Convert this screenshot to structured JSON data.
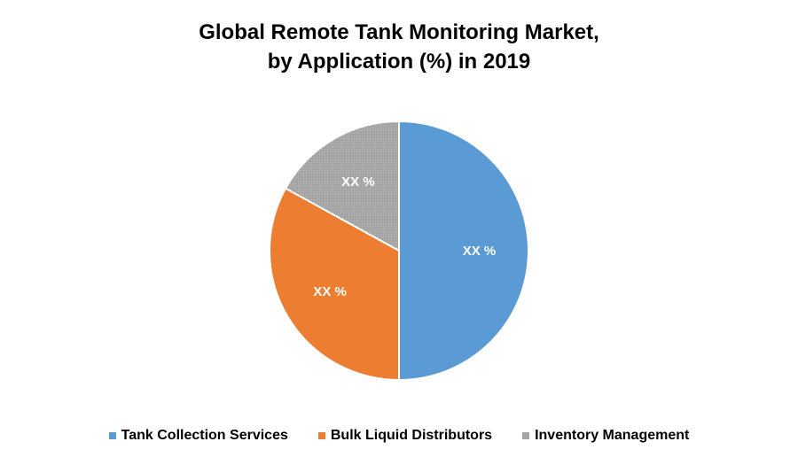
{
  "chart_data": {
    "type": "pie",
    "title_line1": "Global Remote Tank Monitoring Market,",
    "title_line2": "by Application (%) in 2019",
    "slices": [
      {
        "name": "Tank Collection Services",
        "value": 50,
        "label": "XX %",
        "color": "#5b9bd5"
      },
      {
        "name": "Bulk Liquid Distributors",
        "value": 33,
        "label": "XX %",
        "color": "#ed7d31"
      },
      {
        "name": "Inventory Management",
        "value": 17,
        "label": "XX %",
        "color": "#a5a5a5"
      }
    ],
    "legend_position": "bottom"
  }
}
